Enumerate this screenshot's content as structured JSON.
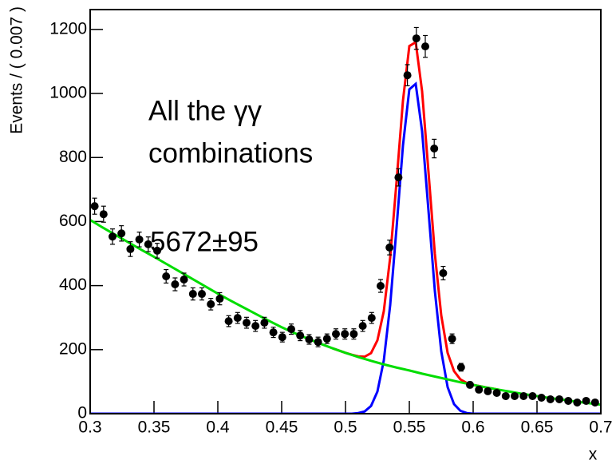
{
  "chart_data": {
    "type": "scatter",
    "y_label": "Events / ( 0.007 )",
    "x_label": "x",
    "xlim": [
      0.3,
      0.7
    ],
    "ylim": [
      0,
      1262
    ],
    "xticks": [
      0.3,
      0.35,
      0.4,
      0.45,
      0.5,
      0.55,
      0.6,
      0.65,
      0.7
    ],
    "yticks": [
      0,
      200,
      400,
      600,
      800,
      1000,
      1200
    ],
    "annotations": [
      "All the γγ",
      "combinations",
      "5672±95"
    ],
    "color": "#000000",
    "x": [
      0.3035,
      0.3105,
      0.3175,
      0.3245,
      0.3315,
      0.3385,
      0.3455,
      0.3525,
      0.3595,
      0.3665,
      0.3735,
      0.3805,
      0.3875,
      0.3945,
      0.4015,
      0.4085,
      0.4155,
      0.4225,
      0.4295,
      0.4365,
      0.4435,
      0.4505,
      0.4575,
      0.4645,
      0.4715,
      0.4785,
      0.4855,
      0.4925,
      0.4995,
      0.5065,
      0.5135,
      0.5205,
      0.5275,
      0.5345,
      0.5415,
      0.5485,
      0.5555,
      0.5625,
      0.5695,
      0.5765,
      0.5835,
      0.5905,
      0.5975,
      0.6045,
      0.6115,
      0.6185,
      0.6255,
      0.6325,
      0.6395,
      0.6465,
      0.6535,
      0.6605,
      0.6675,
      0.6745,
      0.6815,
      0.6885,
      0.6955
    ],
    "values": [
      648,
      623,
      553,
      563,
      514,
      544,
      529,
      509,
      429,
      404,
      419,
      374,
      374,
      342,
      359,
      289,
      299,
      284,
      274,
      284,
      254,
      239,
      264,
      244,
      232,
      224,
      234,
      249,
      249,
      249,
      274,
      299,
      399,
      519,
      738,
      1057,
      1172,
      1147,
      828,
      439,
      234,
      145,
      90,
      75,
      70,
      65,
      55,
      55,
      55,
      55,
      50,
      45,
      45,
      40,
      35,
      40,
      35
    ],
    "errors": [
      25,
      25,
      24,
      24,
      23,
      23,
      23,
      23,
      21,
      20,
      20,
      19,
      19,
      18,
      19,
      17,
      17,
      17,
      17,
      17,
      16,
      15,
      16,
      16,
      15,
      15,
      15,
      16,
      16,
      16,
      17,
      17,
      20,
      23,
      27,
      33,
      34,
      34,
      29,
      21,
      15,
      12,
      9,
      9,
      8,
      8,
      7,
      7,
      7,
      7,
      7,
      7,
      7,
      6,
      6,
      6,
      6
    ],
    "lines": [
      {
        "color": "#ff0000",
        "x": [
          0.49,
          0.5,
          0.505,
          0.51,
          0.515,
          0.52,
          0.525,
          0.53,
          0.535,
          0.54,
          0.545,
          0.55,
          0.555,
          0.56,
          0.565,
          0.57,
          0.575,
          0.58,
          0.585,
          0.59,
          0.595,
          0.6,
          0.605,
          0.61,
          0.62
        ],
        "values": [
          204,
          190,
          184,
          179,
          178,
          189,
          229,
          320,
          488,
          725,
          977,
          1148,
          1160,
          1007,
          755,
          499,
          307,
          190,
          133,
          107,
          96,
          90,
          86,
          82,
          75
        ]
      },
      {
        "color": "#0000ff",
        "x": [
          0.3,
          0.5,
          0.505,
          0.51,
          0.515,
          0.52,
          0.525,
          0.53,
          0.535,
          0.54,
          0.545,
          0.55,
          0.555,
          0.56,
          0.565,
          0.57,
          0.575,
          0.58,
          0.585,
          0.59,
          0.595,
          0.6,
          0.7
        ],
        "values": [
          0,
          0,
          0,
          2,
          7,
          24,
          69,
          166,
          339,
          581,
          837,
          1013,
          1030,
          882,
          634,
          383,
          195,
          83,
          30,
          9,
          2,
          0,
          0
        ]
      },
      {
        "color": "#00dd00",
        "x": [
          0.3,
          0.31,
          0.32,
          0.33,
          0.34,
          0.35,
          0.36,
          0.37,
          0.38,
          0.39,
          0.4,
          0.41,
          0.42,
          0.43,
          0.44,
          0.45,
          0.46,
          0.47,
          0.48,
          0.49,
          0.5,
          0.51,
          0.52,
          0.53,
          0.54,
          0.55,
          0.56,
          0.57,
          0.58,
          0.59,
          0.6,
          0.61,
          0.62,
          0.63,
          0.64,
          0.65,
          0.66,
          0.67,
          0.68,
          0.69,
          0.7
        ],
        "values": [
          605,
          581,
          558,
          535,
          512,
          490,
          467,
          444,
          421,
          398,
          375,
          353,
          332,
          311,
          290,
          270,
          252,
          235,
          219,
          204,
          190,
          177,
          165,
          154,
          144,
          135,
          125,
          116,
          107,
          98,
          90,
          82,
          75,
          68,
          61,
          55,
          49,
          44,
          38,
          33,
          28
        ]
      }
    ]
  }
}
